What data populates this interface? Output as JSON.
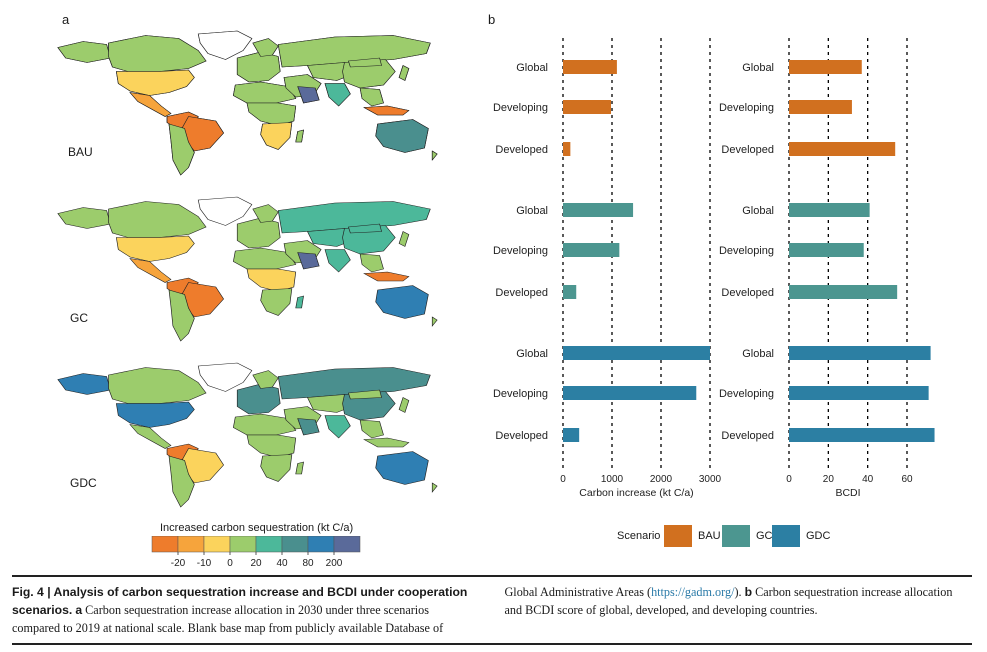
{
  "panel_a_letter": "a",
  "panel_b_letter": "b",
  "map_labels": [
    "BAU",
    "GC",
    "GDC"
  ],
  "legend": {
    "title": "Increased carbon sequestration (kt C/a)",
    "ticks": [
      "-20",
      "-10",
      "0",
      "20",
      "40",
      "80",
      "200"
    ],
    "colors": [
      "#ee7c2c",
      "#f6a43c",
      "#fbd35c",
      "#9ccc6c",
      "#4cb89a",
      "#4a8f8e",
      "#2f7fb3",
      "#5a6a9a"
    ]
  },
  "bar_colors": {
    "BAU": "#d1701f",
    "GC": "#4c9690",
    "GDC": "#2c7fa3"
  },
  "chart_data": [
    {
      "type": "bar",
      "orientation": "horizontal",
      "xlabel": "Carbon increase (kt C/a)",
      "x_ticks": [
        "0",
        "1000",
        "2000",
        "3000"
      ],
      "xlim": [
        0,
        3000
      ],
      "categories": [
        "Global",
        "Developing",
        "Developed"
      ],
      "series": [
        {
          "name": "BAU",
          "values": [
            1100,
            980,
            150
          ]
        },
        {
          "name": "GC",
          "values": [
            1430,
            1150,
            270
          ]
        },
        {
          "name": "GDC",
          "values": [
            3000,
            2720,
            330
          ]
        }
      ]
    },
    {
      "type": "bar",
      "orientation": "horizontal",
      "xlabel": "BCDI",
      "x_ticks": [
        "0",
        "20",
        "40",
        "60"
      ],
      "xlim": [
        0,
        60
      ],
      "categories": [
        "Global",
        "Developing",
        "Developed"
      ],
      "series": [
        {
          "name": "BAU",
          "values": [
            37,
            32,
            54
          ]
        },
        {
          "name": "GC",
          "values": [
            41,
            38,
            55
          ]
        },
        {
          "name": "GDC",
          "values": [
            72,
            71,
            74
          ]
        }
      ]
    }
  ],
  "scenario_legend": {
    "title": "Scenario",
    "items": [
      "BAU",
      "GC",
      "GDC"
    ]
  },
  "caption": {
    "label": "Fig. 4 | Analysis of carbon sequestration increase and BCDI under cooperation scenarios.",
    "a_letter": "a",
    "a_text": "Carbon sequestration increase allocation in 2030 under three scenarios compared to 2019 at national scale. Blank base map from publicly available Database of Global Administrative Areas (",
    "link": "https://gadm.org/",
    "after_link": ").",
    "b_letter": "b",
    "b_text": "Carbon sequestration increase allocation and BCDI score of global, developed, and developing countries."
  }
}
